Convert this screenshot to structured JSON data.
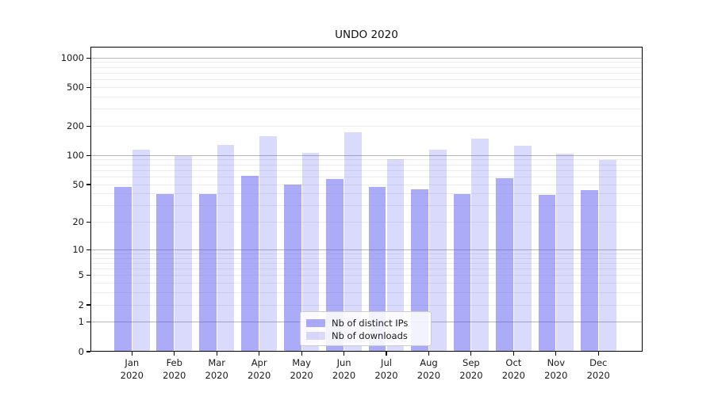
{
  "chart_data": {
    "type": "bar",
    "title": "UNDO 2020",
    "scale": "symlog",
    "xlabel": "",
    "ylabel": "",
    "months": [
      "Jan",
      "Feb",
      "Mar",
      "Apr",
      "May",
      "Jun",
      "Jul",
      "Aug",
      "Sep",
      "Oct",
      "Nov",
      "Dec"
    ],
    "year": "2020",
    "categories": [
      "Jan 2020",
      "Feb 2020",
      "Mar 2020",
      "Apr 2020",
      "May 2020",
      "Jun 2020",
      "Jul 2020",
      "Aug 2020",
      "Sep 2020",
      "Oct 2020",
      "Nov 2020",
      "Dec 2020"
    ],
    "series": [
      {
        "name": "Nb of distinct IPs",
        "color": "rgba(88,88,242,0.5)",
        "values": [
          47,
          40,
          40,
          62,
          50,
          57,
          47,
          45,
          40,
          58,
          39,
          44
        ]
      },
      {
        "name": "Nb of downloads",
        "color": "rgba(88,88,242,0.22)",
        "values": [
          115,
          98,
          128,
          158,
          106,
          175,
          92,
          115,
          150,
          126,
          104,
          90
        ]
      }
    ],
    "y_ticks": [
      0,
      1,
      2,
      5,
      10,
      20,
      50,
      100,
      200,
      500,
      1000
    ],
    "ylim": [
      0,
      1000
    ],
    "grid": true,
    "legend_position": "lower-center"
  },
  "colors": {
    "decade_gridline": "#b6b6b6",
    "minor_gridline": "#ececec",
    "axis": "#000000",
    "text": "#1a1a1a",
    "legend_border": "#cccccc",
    "legend_background": "rgba(255,255,255,0.85)"
  }
}
